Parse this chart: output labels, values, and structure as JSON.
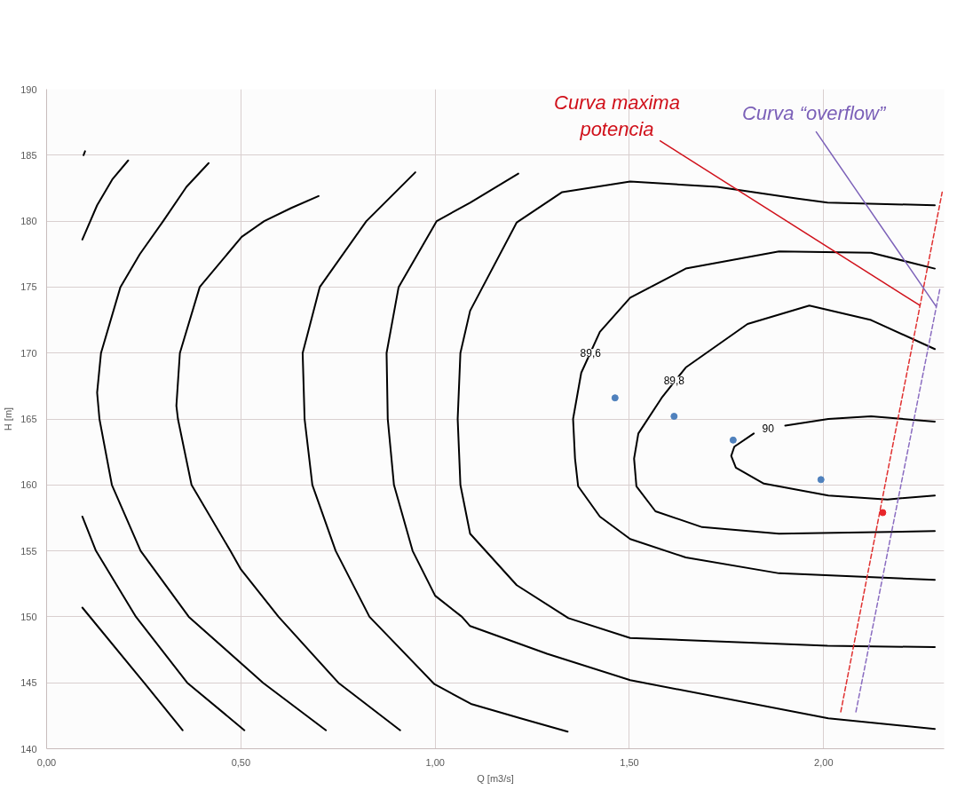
{
  "chart_data": {
    "type": "line",
    "xlabel": "Q [m3/s]",
    "ylabel": "H [m]",
    "xlim": [
      0,
      2.31
    ],
    "ylim": [
      140,
      190
    ],
    "xticks": [
      {
        "value": 0,
        "label": "0,00"
      },
      {
        "value": 0.5,
        "label": "0,50"
      },
      {
        "value": 1,
        "label": "1,00"
      },
      {
        "value": 1.5,
        "label": "1,50"
      },
      {
        "value": 2,
        "label": "2,00"
      }
    ],
    "yticks": [
      140,
      145,
      150,
      155,
      160,
      165,
      170,
      175,
      180,
      185,
      190
    ],
    "grid": true,
    "marker": "none",
    "line_style": "solid",
    "series": [
      {
        "color": "#000000",
        "x": [
          0.095,
          0.099
        ],
        "values": [
          185.0,
          185.3
        ]
      },
      {
        "color": "#000000",
        "x": [
          0.092,
          0.13,
          0.17,
          0.21
        ],
        "values": [
          178.6,
          181.2,
          183.2,
          184.6
        ]
      },
      {
        "color": "#000000",
        "x": [
          0.417,
          0.36,
          0.3,
          0.24,
          0.19,
          0.14,
          0.13,
          0.136,
          0.168,
          0.242,
          0.366,
          0.557,
          0.719
        ],
        "values": [
          184.4,
          182.6,
          180,
          177.5,
          175,
          170,
          167,
          165,
          160,
          155,
          150,
          145,
          141.4
        ]
      },
      {
        "color": "#000000",
        "x": [
          0.7,
          0.63,
          0.56,
          0.502,
          0.394,
          0.343,
          0.334,
          0.338,
          0.373,
          0.473,
          0.5,
          0.597,
          0.751,
          0.91
        ],
        "values": [
          181.9,
          181.0,
          180,
          178.8,
          175,
          170,
          166,
          165,
          160,
          155,
          153.6,
          150,
          145,
          141.4
        ]
      },
      {
        "color": "#000000",
        "x": [
          0.949,
          0.823,
          0.703,
          0.659,
          0.664,
          0.684,
          0.744,
          0.831,
          0.998,
          1.092,
          1.22,
          1.341
        ],
        "values": [
          183.7,
          180,
          175,
          170,
          165,
          160,
          155,
          150,
          144.9,
          143.4,
          142.3,
          141.3
        ]
      },
      {
        "color": "#000000",
        "x": [
          1.214,
          1.09,
          1.004,
          0.906,
          0.875,
          0.878,
          0.894,
          0.942,
          1.0,
          1.069,
          1.09,
          1.288,
          1.502,
          2.012,
          2.286
        ],
        "values": [
          183.6,
          181.4,
          180,
          175,
          170,
          165,
          160,
          155,
          151.6,
          150,
          149.3,
          147.2,
          145.2,
          142.3,
          141.5
        ]
      },
      {
        "color": "#000000",
        "x": [
          2.286,
          2.01,
          1.933,
          1.726,
          1.502,
          1.327,
          1.21,
          1.09,
          1.065,
          1.058,
          1.065,
          1.09,
          1.21,
          1.343,
          1.502,
          2.01,
          2.286
        ],
        "values": [
          181.2,
          181.4,
          181.7,
          182.6,
          183.0,
          182.2,
          179.9,
          173.2,
          170,
          165,
          160,
          156.3,
          152.4,
          149.9,
          148.4,
          147.8,
          147.7
        ]
      },
      {
        "color": "#000000",
        "x": [
          2.286,
          2.122,
          1.885,
          1.645,
          1.502,
          1.424,
          1.376,
          1.355,
          1.36,
          1.368,
          1.424,
          1.502,
          1.645,
          1.885,
          2.286
        ],
        "values": [
          176.4,
          177.6,
          177.7,
          176.4,
          174.2,
          171.6,
          168.5,
          165,
          162,
          159.9,
          157.6,
          155.9,
          154.5,
          153.3,
          152.8
        ]
      },
      {
        "color": "#000000",
        "x": [
          2.286,
          2.122,
          1.963,
          1.804,
          1.645,
          1.583,
          1.523,
          1.512,
          1.518,
          1.567,
          1.687,
          1.885,
          2.286
        ],
        "values": [
          170.3,
          172.5,
          173.6,
          172.2,
          168.9,
          166.6,
          163.9,
          162,
          159.9,
          158.0,
          156.8,
          156.3,
          156.5
        ]
      },
      {
        "color": "#000000",
        "x": [
          2.286,
          2.122,
          2.012,
          1.901,
          1.857,
          1.82,
          1.77,
          1.762,
          1.774,
          1.846,
          2.012,
          2.164,
          2.286
        ],
        "values": [
          164.8,
          165.2,
          165.0,
          164.5,
          null,
          163.9,
          162.9,
          162.2,
          161.3,
          160.1,
          159.2,
          158.9,
          159.2
        ]
      },
      {
        "color": "#000000",
        "x": [
          0.092,
          0.127,
          0.23,
          0.362,
          0.509
        ],
        "values": [
          157.6,
          155,
          150,
          145,
          141.4
        ]
      },
      {
        "color": "#000000",
        "x": [
          0.092,
          0.251,
          0.35
        ],
        "values": [
          150.7,
          145,
          141.4
        ]
      },
      {
        "color": "#e03030",
        "line_style": "dashed",
        "x": [
          2.044,
          2.305
        ],
        "values": [
          142.8,
          182.2
        ]
      },
      {
        "color": "#8a6cc0",
        "line_style": "dashed",
        "x": [
          2.083,
          2.3
        ],
        "values": [
          142.8,
          175.0
        ]
      },
      {
        "type": "scatter",
        "marker": "circle",
        "color": "#4f81bd",
        "x": [
          1.463,
          1.615,
          1.767,
          1.993
        ],
        "values": [
          166.6,
          165.2,
          163.4,
          160.4
        ]
      },
      {
        "type": "scatter",
        "marker": "circle",
        "color": "#e8262b",
        "x": [
          2.152
        ],
        "values": [
          157.9
        ]
      }
    ],
    "annotations": [
      {
        "text": "89,6",
        "x": 1.4,
        "y": 170.0
      },
      {
        "text": "89,8",
        "x": 1.615,
        "y": 167.9
      },
      {
        "text": "90",
        "x": 1.857,
        "y": 164.3
      },
      {
        "text": "Curva maxima potencia",
        "x": 2.248,
        "y": 173.6
      },
      {
        "text": "Curva “overflow”",
        "x": 2.29,
        "y": 173.5
      }
    ]
  }
}
